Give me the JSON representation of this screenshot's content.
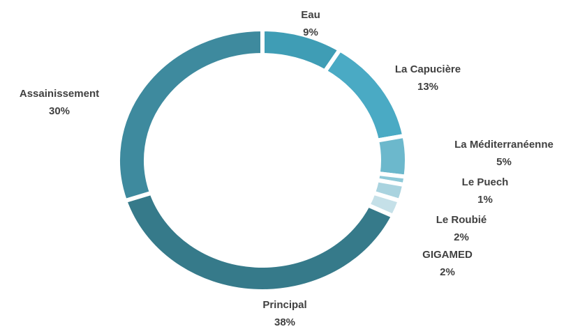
{
  "chart_data": {
    "type": "donut",
    "categories": [
      "Eau",
      "La Capucière",
      "La Méditerranéenne",
      "Le Puech",
      "Le Roubié",
      "GIGAMED",
      "Principal",
      "Assainissement"
    ],
    "values": [
      9,
      13,
      5,
      1,
      2,
      2,
      38,
      30
    ],
    "value_labels": [
      "9%",
      "13%",
      "5%",
      "1%",
      "2%",
      "2%",
      "38%",
      "30%"
    ],
    "colors": [
      "#3f9db5",
      "#4aaac4",
      "#6cb8cc",
      "#8ec9d8",
      "#a9d3df",
      "#c5e0e8",
      "#367a8a",
      "#3e8a9e"
    ]
  }
}
